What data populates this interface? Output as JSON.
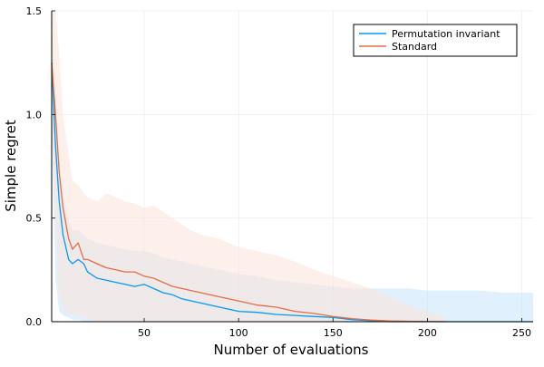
{
  "chart_data": {
    "type": "line",
    "title": "",
    "xlabel": "Number of evaluations",
    "ylabel": "Simple regret",
    "xlim": [
      1,
      256
    ],
    "ylim": [
      0,
      1.5
    ],
    "xticks": [
      50,
      100,
      150,
      200,
      250
    ],
    "xtick_labels": [
      "50",
      "100",
      "150",
      "200",
      "250"
    ],
    "yticks": [
      0,
      0.5,
      1.0,
      1.5
    ],
    "ytick_labels": [
      "0.0",
      "0.5",
      "1.0",
      "1.5"
    ],
    "grid": true,
    "legend_position": "top-right",
    "series": [
      {
        "name": "Permutation invariant",
        "color": "#009AFA",
        "band_color": "#C6E6FB",
        "x": [
          1,
          3,
          5,
          7,
          10,
          12,
          15,
          18,
          20,
          25,
          30,
          35,
          40,
          45,
          50,
          55,
          60,
          65,
          70,
          75,
          80,
          90,
          100,
          110,
          120,
          130,
          140,
          150,
          160,
          170,
          180,
          190,
          200,
          210,
          220,
          230,
          240,
          256
        ],
        "y": [
          1.25,
          0.85,
          0.58,
          0.42,
          0.3,
          0.28,
          0.3,
          0.28,
          0.24,
          0.21,
          0.2,
          0.19,
          0.18,
          0.17,
          0.18,
          0.16,
          0.14,
          0.13,
          0.11,
          0.1,
          0.09,
          0.07,
          0.05,
          0.045,
          0.035,
          0.03,
          0.025,
          0.02,
          0.01,
          0.005,
          0.0,
          0.0,
          0.0,
          0.0,
          0.0,
          0.0,
          0.0,
          0.0
        ],
        "upper": [
          1.45,
          1.1,
          0.8,
          0.62,
          0.48,
          0.44,
          0.44,
          0.42,
          0.4,
          0.38,
          0.37,
          0.36,
          0.35,
          0.34,
          0.34,
          0.33,
          0.31,
          0.3,
          0.29,
          0.28,
          0.27,
          0.25,
          0.23,
          0.22,
          0.2,
          0.19,
          0.18,
          0.17,
          0.16,
          0.16,
          0.16,
          0.16,
          0.15,
          0.15,
          0.15,
          0.15,
          0.14,
          0.14
        ],
        "lower": [
          1.0,
          0.2,
          0.05,
          0.03,
          0.02,
          0.01,
          0.01,
          0.0,
          0.0,
          0.0,
          0.0,
          0.0,
          0.0,
          0.0,
          0.0,
          0.0,
          0.0,
          0.0,
          0.0,
          0.0,
          0.0,
          0.0,
          0.0,
          0.0,
          0.0,
          0.0,
          0.0,
          0.0,
          0.0,
          0.0,
          0.0,
          0.0,
          0.0,
          0.0,
          0.0,
          0.0,
          0.0,
          0.0
        ]
      },
      {
        "name": "Standard",
        "color": "#E26F46",
        "band_color": "#FBE2D8",
        "x": [
          1,
          3,
          5,
          7,
          10,
          12,
          15,
          18,
          20,
          25,
          30,
          35,
          40,
          45,
          50,
          55,
          60,
          65,
          70,
          75,
          80,
          90,
          100,
          110,
          120,
          130,
          140,
          150,
          160,
          170,
          180,
          190,
          200,
          210
        ],
        "y": [
          1.25,
          1.0,
          0.72,
          0.55,
          0.4,
          0.35,
          0.38,
          0.3,
          0.3,
          0.28,
          0.26,
          0.25,
          0.24,
          0.24,
          0.22,
          0.21,
          0.19,
          0.17,
          0.16,
          0.15,
          0.14,
          0.12,
          0.1,
          0.08,
          0.07,
          0.05,
          0.04,
          0.025,
          0.015,
          0.008,
          0.004,
          0.002,
          0.001,
          0.0
        ],
        "upper": [
          1.5,
          1.5,
          1.3,
          1.0,
          0.8,
          0.68,
          0.66,
          0.62,
          0.6,
          0.58,
          0.62,
          0.6,
          0.58,
          0.57,
          0.55,
          0.56,
          0.53,
          0.5,
          0.47,
          0.44,
          0.42,
          0.4,
          0.36,
          0.34,
          0.32,
          0.29,
          0.25,
          0.22,
          0.19,
          0.16,
          0.12,
          0.08,
          0.05,
          0.02
        ],
        "lower": [
          1.0,
          0.5,
          0.14,
          0.06,
          0.04,
          0.03,
          0.03,
          0.02,
          0.02,
          0.0,
          0.0,
          0.0,
          0.0,
          0.0,
          0.0,
          0.0,
          0.0,
          0.0,
          0.0,
          0.0,
          0.0,
          0.0,
          0.0,
          0.0,
          0.0,
          0.0,
          0.0,
          0.0,
          0.0,
          0.0,
          0.0,
          0.0,
          0.0,
          0.0
        ]
      }
    ]
  }
}
